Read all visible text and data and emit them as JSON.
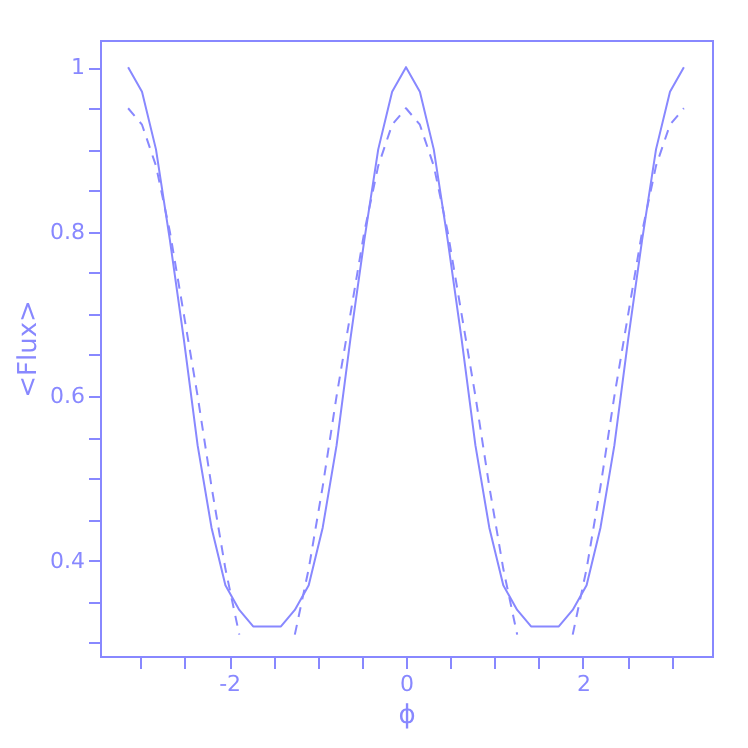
{
  "chart_data": {
    "type": "line",
    "xlabel": "ϕ",
    "ylabel": "<Flux>",
    "xlim": [
      -3.46,
      3.46
    ],
    "ylim": [
      0.284,
      1.033
    ],
    "xticks": [
      {
        "value": -3,
        "label": null
      },
      {
        "value": -2.5,
        "label": null
      },
      -2,
      {
        "value": -1.5,
        "label": null
      },
      {
        "value": -1,
        "label": null
      },
      {
        "value": -0.5,
        "label": null
      },
      0,
      {
        "value": 0.5,
        "label": null
      },
      {
        "value": 1,
        "label": null
      },
      {
        "value": 1.5,
        "label": null
      },
      2,
      {
        "value": 2.5,
        "label": null
      },
      {
        "value": 3,
        "label": null
      }
    ],
    "yticks": [
      {
        "value": 0.3,
        "label": null
      },
      {
        "value": 0.35,
        "label": null
      },
      0.4,
      {
        "value": 0.45,
        "label": null
      },
      {
        "value": 0.5,
        "label": null
      },
      {
        "value": 0.55,
        "label": null
      },
      0.6,
      {
        "value": 0.65,
        "label": null
      },
      {
        "value": 0.7,
        "label": null
      },
      {
        "value": 0.75,
        "label": null
      },
      0.8,
      {
        "value": 0.85,
        "label": null
      },
      {
        "value": 0.9,
        "label": null
      },
      {
        "value": 0.95,
        "label": null
      },
      1
    ],
    "grid": false,
    "marker": "none",
    "series": [
      {
        "color": "#8888ff",
        "line_style": "solid",
        "x": [
          -3.142,
          -2.985,
          -2.827,
          -2.67,
          -2.513,
          -2.356,
          -2.199,
          -2.042,
          -1.885,
          -1.728,
          -1.571,
          -1.414,
          -1.257,
          -1.1,
          -0.942,
          -0.785,
          -0.628,
          -0.471,
          -0.314,
          -0.157,
          0,
          0.157,
          0.314,
          0.471,
          0.628,
          0.785,
          0.942,
          1.1,
          1.257,
          1.414,
          1.571,
          1.728,
          1.885,
          2.042,
          2.199,
          2.356,
          2.513,
          2.67,
          2.827,
          2.985,
          3.142
        ],
        "values": [
          1.0,
          0.97,
          0.9,
          0.79,
          0.67,
          0.54,
          0.44,
          0.37,
          0.34,
          0.32,
          0.32,
          0.32,
          0.34,
          0.37,
          0.44,
          0.54,
          0.67,
          0.79,
          0.9,
          0.97,
          1.0,
          0.97,
          0.9,
          0.79,
          0.67,
          0.54,
          0.44,
          0.37,
          0.34,
          0.32,
          0.32,
          0.32,
          0.34,
          0.37,
          0.44,
          0.54,
          0.67,
          0.79,
          0.9,
          0.97,
          1.0
        ]
      },
      {
        "color": "#8888ff",
        "line_style": "dashed",
        "x": [
          -3.142,
          -2.985,
          -2.827,
          -2.67,
          -2.513,
          -2.356,
          -2.199,
          -2.042,
          -1.885,
          -1.571,
          -1.257,
          -1.1,
          -0.942,
          -0.785,
          -0.628,
          -0.471,
          -0.314,
          -0.157,
          0,
          0.157,
          0.314,
          0.471,
          0.628,
          0.785,
          0.942,
          1.1,
          1.257,
          1.571,
          1.885,
          2.042,
          2.199,
          2.356,
          2.513,
          2.67,
          2.827,
          2.985,
          3.142
        ],
        "values": [
          0.95,
          0.93,
          0.88,
          0.8,
          0.7,
          0.6,
          0.49,
          0.39,
          0.31,
          null,
          0.31,
          0.39,
          0.49,
          0.6,
          0.7,
          0.8,
          0.88,
          0.93,
          0.95,
          0.93,
          0.88,
          0.8,
          0.7,
          0.6,
          0.49,
          0.39,
          0.31,
          null,
          0.31,
          0.39,
          0.49,
          0.6,
          0.7,
          0.8,
          0.88,
          0.93,
          0.95
        ]
      }
    ]
  }
}
